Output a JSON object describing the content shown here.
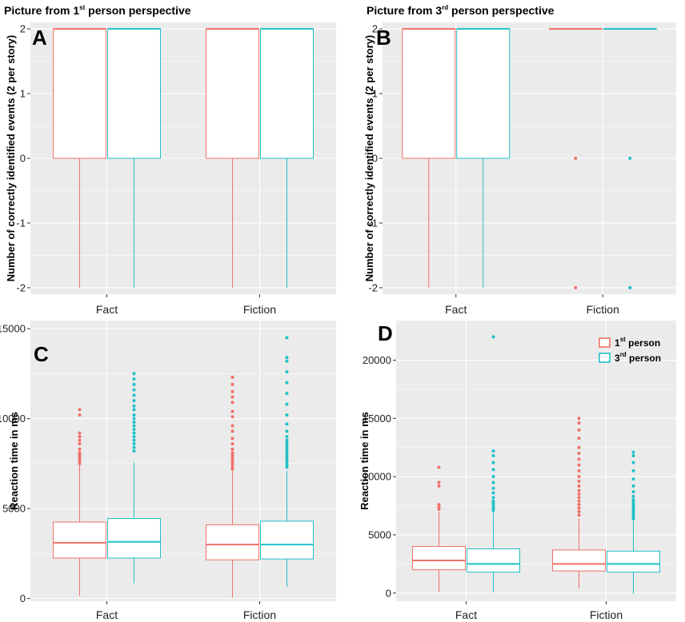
{
  "colors": {
    "first": "#f07068",
    "third": "#20c0c8",
    "panel_bg": "#ebebeb",
    "grid": "#ffffff"
  },
  "chart_data": [
    {
      "id": "A",
      "type": "box",
      "letter": "A",
      "title": {
        "pre": "Picture from 1",
        "sup": "st",
        "post": " person perspective"
      },
      "ylabel": "Number of correctly identified events (2 per story)",
      "categories": [
        "Fact",
        "Fiction"
      ],
      "ylim": [
        -2.1,
        2.1
      ],
      "yticks": [
        -2,
        -1,
        0,
        1,
        2
      ],
      "ytick_labels": [
        "-2",
        "-1",
        "0",
        "1",
        "2"
      ],
      "series": [
        {
          "name": "1st person",
          "boxes": [
            {
              "min": -2,
              "q1": 0,
              "median": 2,
              "q3": 2,
              "max": 2,
              "outliers": []
            },
            {
              "min": -2,
              "q1": 0,
              "median": 2,
              "q3": 2,
              "max": 2,
              "outliers": []
            }
          ]
        },
        {
          "name": "3rd person",
          "boxes": [
            {
              "min": -2,
              "q1": 0,
              "median": 2,
              "q3": 2,
              "max": 2,
              "outliers": []
            },
            {
              "min": -2,
              "q1": 0,
              "median": 2,
              "q3": 2,
              "max": 2,
              "outliers": []
            }
          ]
        }
      ]
    },
    {
      "id": "B",
      "type": "box",
      "letter": "B",
      "title": {
        "pre": "Picture from 3",
        "sup": "rd",
        "post": " person perspective"
      },
      "ylabel": "Number of correctly identified events (2 per story)",
      "categories": [
        "Fact",
        "Fiction"
      ],
      "ylim": [
        -2.1,
        2.1
      ],
      "yticks": [
        -2,
        -1,
        0,
        1,
        2
      ],
      "ytick_labels": [
        "-2",
        "-1",
        "0",
        "1",
        "2"
      ],
      "series": [
        {
          "name": "1st person",
          "boxes": [
            {
              "min": -2,
              "q1": 0,
              "median": 2,
              "q3": 2,
              "max": 2,
              "outliers": []
            },
            {
              "min": 2,
              "q1": 2,
              "median": 2,
              "q3": 2,
              "max": 2,
              "outliers": [
                0,
                -2
              ]
            }
          ]
        },
        {
          "name": "3rd person",
          "boxes": [
            {
              "min": -2,
              "q1": 0,
              "median": 2,
              "q3": 2,
              "max": 2,
              "outliers": []
            },
            {
              "min": 2,
              "q1": 2,
              "median": 2,
              "q3": 2,
              "max": 2,
              "outliers": [
                0,
                -2
              ]
            }
          ]
        }
      ]
    },
    {
      "id": "C",
      "type": "box",
      "letter": "C",
      "ylabel": "Reaction time in ms",
      "categories": [
        "Fact",
        "Fiction"
      ],
      "ylim": [
        -150,
        15450
      ],
      "yticks": [
        0,
        5000,
        10000,
        15000
      ],
      "ytick_labels": [
        "0",
        "5000",
        "10000",
        "15000"
      ],
      "series": [
        {
          "name": "1st person",
          "boxes": [
            {
              "min": 150,
              "q1": 2250,
              "median": 3100,
              "q3": 4250,
              "max": 7400,
              "outliers": [
                7500,
                7650,
                7800,
                7900,
                8000,
                8100,
                8300,
                8600,
                8800,
                9000,
                9200,
                10200,
                10500
              ]
            },
            {
              "min": 50,
              "q1": 2150,
              "median": 3000,
              "q3": 4100,
              "max": 7100,
              "outliers": [
                7200,
                7350,
                7500,
                7650,
                7800,
                7950,
                8100,
                8300,
                8600,
                8900,
                9300,
                9600,
                10100,
                10400,
                10900,
                11200,
                11500,
                11900,
                12300
              ]
            }
          ]
        },
        {
          "name": "3rd person",
          "boxes": [
            {
              "min": 850,
              "q1": 2250,
              "median": 3150,
              "q3": 4450,
              "max": 7550,
              "outliers": [
                8200,
                8400,
                8600,
                8800,
                9000,
                9200,
                9400,
                9600,
                9800,
                10000,
                10200,
                10500,
                10700,
                11000,
                11300,
                11600,
                11900,
                12200,
                12500
              ]
            },
            {
              "min": 650,
              "q1": 2200,
              "median": 3000,
              "q3": 4300,
              "max": 7100,
              "outliers": [
                7300,
                7450,
                7600,
                7750,
                7900,
                8050,
                8200,
                8350,
                8500,
                8650,
                8800,
                9000,
                9300,
                9700,
                10200,
                10800,
                11400,
                12000,
                12600,
                13200,
                13400,
                14500
              ]
            }
          ]
        }
      ]
    },
    {
      "id": "D",
      "type": "box",
      "letter": "D",
      "ylabel": "Reaction time in ms",
      "categories": [
        "Fact",
        "Fiction"
      ],
      "ylim": [
        -700,
        23400
      ],
      "yticks": [
        0,
        5000,
        10000,
        15000,
        20000
      ],
      "ytick_labels": [
        "0",
        "5000",
        "10000",
        "15000",
        "20000"
      ],
      "legend": [
        {
          "pre": "1",
          "sup": "st",
          "post": " person"
        },
        {
          "pre": "3",
          "sup": "rd",
          "post": " person"
        }
      ],
      "series": [
        {
          "name": "1st person",
          "boxes": [
            {
              "min": 100,
              "q1": 2000,
              "median": 2800,
              "q3": 4000,
              "max": 7000,
              "outliers": [
                7200,
                7400,
                7600,
                9200,
                9500,
                10800
              ]
            },
            {
              "min": 400,
              "q1": 1900,
              "median": 2500,
              "q3": 3700,
              "max": 6400,
              "outliers": [
                6700,
                7000,
                7300,
                7600,
                7900,
                8200,
                8500,
                8800,
                9200,
                9600,
                10000,
                10500,
                11000,
                11500,
                12000,
                12500,
                13300,
                14000,
                14600,
                15000
              ]
            }
          ]
        },
        {
          "name": "3rd person",
          "boxes": [
            {
              "min": 50,
              "q1": 1800,
              "median": 2500,
              "q3": 3800,
              "max": 6900,
              "outliers": [
                7100,
                7300,
                7500,
                7700,
                7900,
                8200,
                8600,
                9000,
                9500,
                10000,
                10600,
                11200,
                11800,
                12200,
                22000
              ]
            },
            {
              "min": -50,
              "q1": 1800,
              "median": 2500,
              "q3": 3600,
              "max": 6200,
              "outliers": [
                6400,
                6600,
                6800,
                7000,
                7200,
                7400,
                7600,
                7800,
                8000,
                8300,
                8700,
                9200,
                9800,
                10500,
                11200,
                11800,
                12100
              ]
            }
          ]
        }
      ]
    }
  ]
}
